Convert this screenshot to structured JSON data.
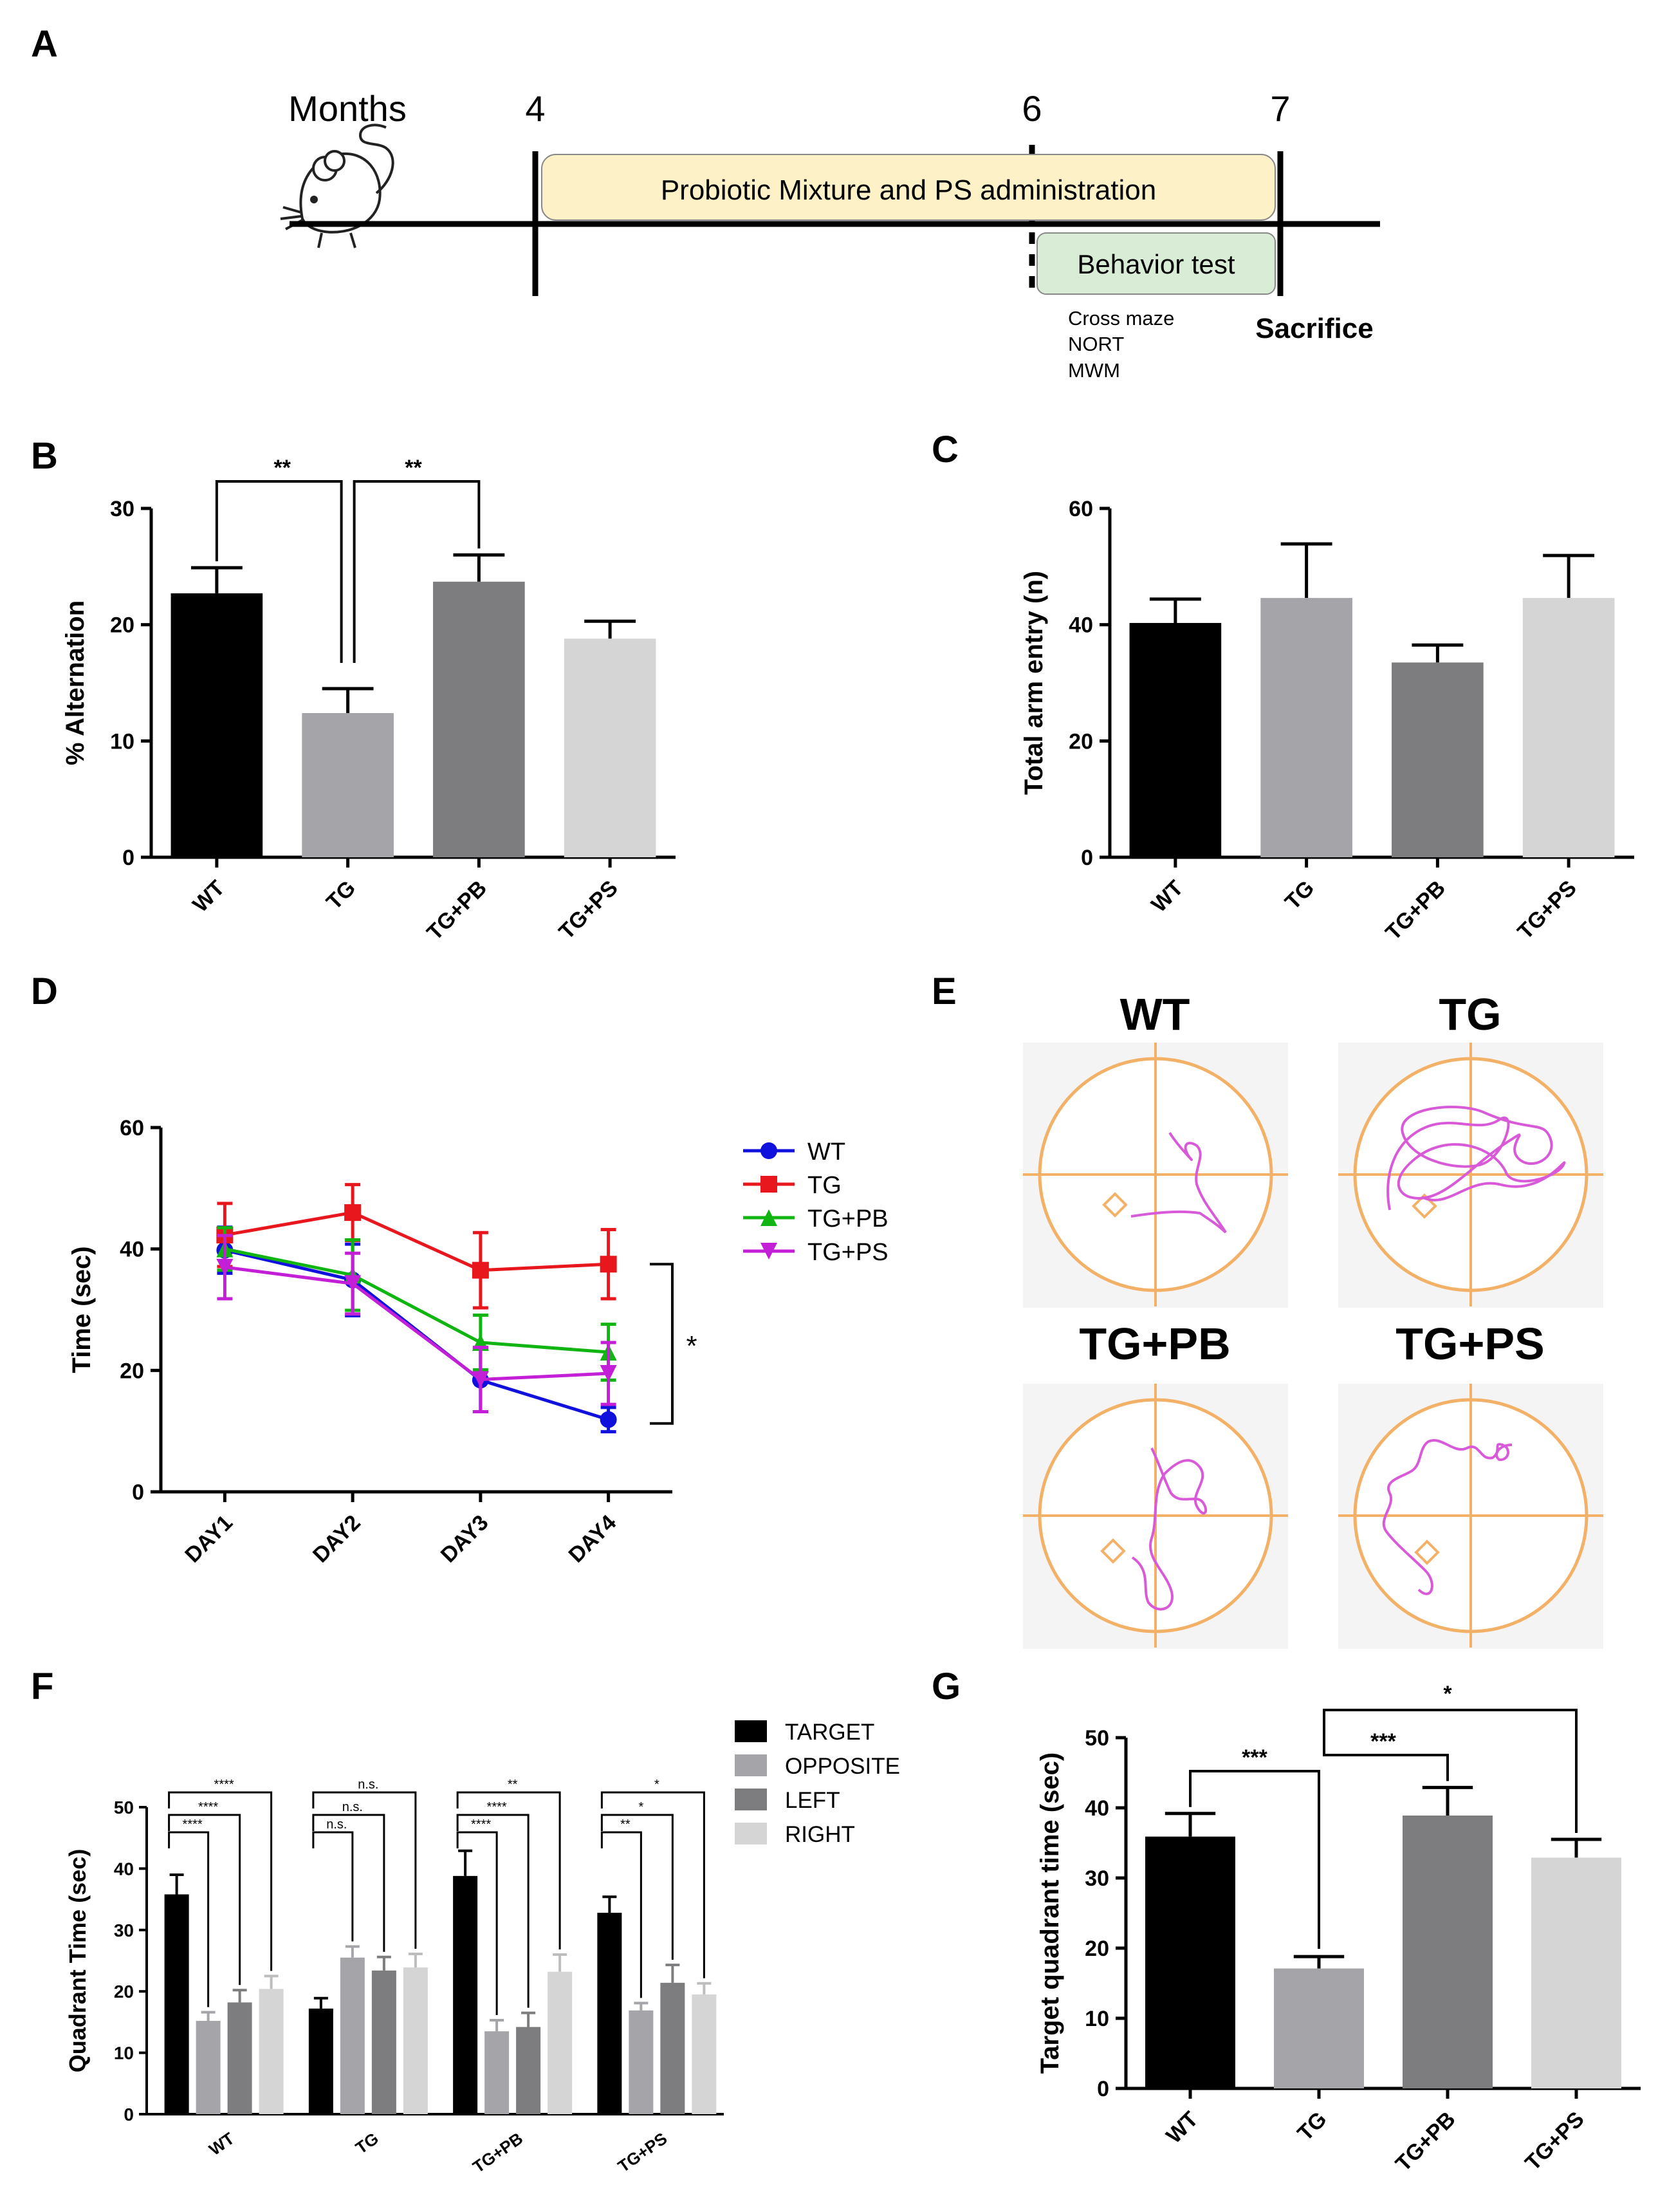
{
  "panels": {
    "A": "A",
    "B": "B",
    "C": "C",
    "D": "D",
    "E": "E",
    "F": "F",
    "G": "G"
  },
  "timeline": {
    "label": "Months",
    "months": [
      "4",
      "6",
      "7"
    ],
    "treatment": "Probiotic Mixture and PS administration",
    "behavior": "Behavior test",
    "tests": [
      "Cross maze",
      "NORT",
      "MWM"
    ],
    "end": "Sacrifice",
    "colors": {
      "treatment": "#fdf1c8",
      "behavior": "#d9ecd6"
    }
  },
  "chart_data": [
    {
      "id": "B",
      "type": "bar",
      "categories": [
        "WT",
        "TG",
        "TG+PB",
        "TG+PS"
      ],
      "values": [
        22.7,
        12.4,
        23.7,
        18.8
      ],
      "errors": [
        2.2,
        2.1,
        2.3,
        1.5
      ],
      "colors": [
        "#000000",
        "#a5a5a9",
        "#7d7d7f",
        "#d5d5d5"
      ],
      "ylabel": "% Alternation",
      "ylim": [
        0,
        30
      ],
      "yticks": [
        "0",
        "10",
        "20",
        "30"
      ],
      "significance": [
        {
          "from": 0,
          "to": 1,
          "label": "**"
        },
        {
          "from": 1,
          "to": 2,
          "label": "**"
        }
      ]
    },
    {
      "id": "C",
      "type": "bar",
      "categories": [
        "WT",
        "TG",
        "TG+PB",
        "TG+PS"
      ],
      "values": [
        40.3,
        44.6,
        33.5,
        44.6
      ],
      "errors": [
        4.1,
        9.3,
        3.0,
        7.3
      ],
      "colors": [
        "#000000",
        "#a5a5a9",
        "#7d7d7f",
        "#d5d5d5"
      ],
      "ylabel": "Total arm entry (n)",
      "ylim": [
        0,
        60
      ],
      "yticks": [
        "0",
        "20",
        "40",
        "60"
      ]
    },
    {
      "id": "D",
      "type": "line",
      "categories": [
        "DAY1",
        "DAY2",
        "DAY3",
        "DAY4"
      ],
      "ylabel": "Time (sec)",
      "ylim": [
        0,
        60
      ],
      "yticks": [
        "0",
        "20",
        "40",
        "60"
      ],
      "series": [
        {
          "name": "WT",
          "color": "#1111dd",
          "marker": "circle",
          "values": [
            39.8,
            34.9,
            18.4,
            11.9
          ],
          "errors": [
            3.8,
            5.9,
            5.2,
            2.0
          ]
        },
        {
          "name": "TG",
          "color": "#e8171e",
          "marker": "square",
          "values": [
            42.3,
            46.0,
            36.5,
            37.5
          ],
          "errors": [
            5.2,
            4.6,
            6.2,
            5.7
          ]
        },
        {
          "name": "TG+PB",
          "color": "#11b511",
          "marker": "triangle-up",
          "values": [
            40.0,
            35.7,
            24.6,
            23.0
          ],
          "errors": [
            3.5,
            5.8,
            4.5,
            4.6
          ]
        },
        {
          "name": "TG+PS",
          "color": "#c21fd6",
          "marker": "triangle-down",
          "values": [
            37.0,
            34.3,
            18.5,
            19.5
          ],
          "errors": [
            5.2,
            5.0,
            5.3,
            5.1
          ]
        }
      ],
      "significance": "*"
    },
    {
      "id": "F",
      "type": "bar",
      "categories": [
        "WT",
        "TG",
        "TG+PB",
        "TG+PS"
      ],
      "ylabel": "Quadrant Time (sec)",
      "ylim": [
        0,
        50
      ],
      "yticks": [
        "0",
        "10",
        "20",
        "30",
        "40",
        "50"
      ],
      "series": [
        {
          "name": "TARGET",
          "color": "#000000",
          "values": [
            35.8,
            17.2,
            38.8,
            32.8
          ],
          "errors": [
            3.2,
            1.7,
            4.1,
            2.6
          ]
        },
        {
          "name": "OPPOSITE",
          "color": "#a5a5a9",
          "values": [
            15.2,
            25.5,
            13.5,
            16.9
          ],
          "errors": [
            1.4,
            1.8,
            1.8,
            1.2
          ]
        },
        {
          "name": "LEFT",
          "color": "#7d7d7f",
          "values": [
            18.2,
            23.4,
            14.2,
            21.4
          ],
          "errors": [
            2.0,
            2.2,
            2.3,
            2.9
          ]
        },
        {
          "name": "RIGHT",
          "color": "#d5d5d5",
          "values": [
            20.4,
            23.9,
            23.2,
            19.5
          ],
          "errors": [
            2.1,
            2.2,
            2.8,
            1.8
          ]
        }
      ],
      "significance": [
        [
          "****",
          "****",
          "****"
        ],
        [
          "n.s.",
          "n.s.",
          "n.s."
        ],
        [
          "****",
          "****",
          "**"
        ],
        [
          "**",
          "*",
          "*"
        ]
      ]
    },
    {
      "id": "G",
      "type": "bar",
      "categories": [
        "WT",
        "TG",
        "TG+PB",
        "TG+PS"
      ],
      "values": [
        35.9,
        17.1,
        38.9,
        32.9
      ],
      "errors": [
        3.3,
        1.7,
        4.0,
        2.6
      ],
      "colors": [
        "#000000",
        "#a5a5a9",
        "#7d7d7f",
        "#d5d5d5"
      ],
      "ylabel": "Target quadrant time (sec)",
      "ylim": [
        0,
        50
      ],
      "yticks": [
        "0",
        "10",
        "20",
        "30",
        "40",
        "50"
      ],
      "significance": [
        {
          "from": 0,
          "to": 1,
          "label": "***"
        },
        {
          "from": 1,
          "to": 2,
          "label": "***"
        },
        {
          "from": 1,
          "to": 3,
          "label": "*"
        }
      ]
    }
  ],
  "swim_paths": {
    "titles": [
      "WT",
      "TG",
      "TG+PB",
      "TG+PS"
    ],
    "pool_color": "#f3b067",
    "path_color": "#d95ad8"
  }
}
